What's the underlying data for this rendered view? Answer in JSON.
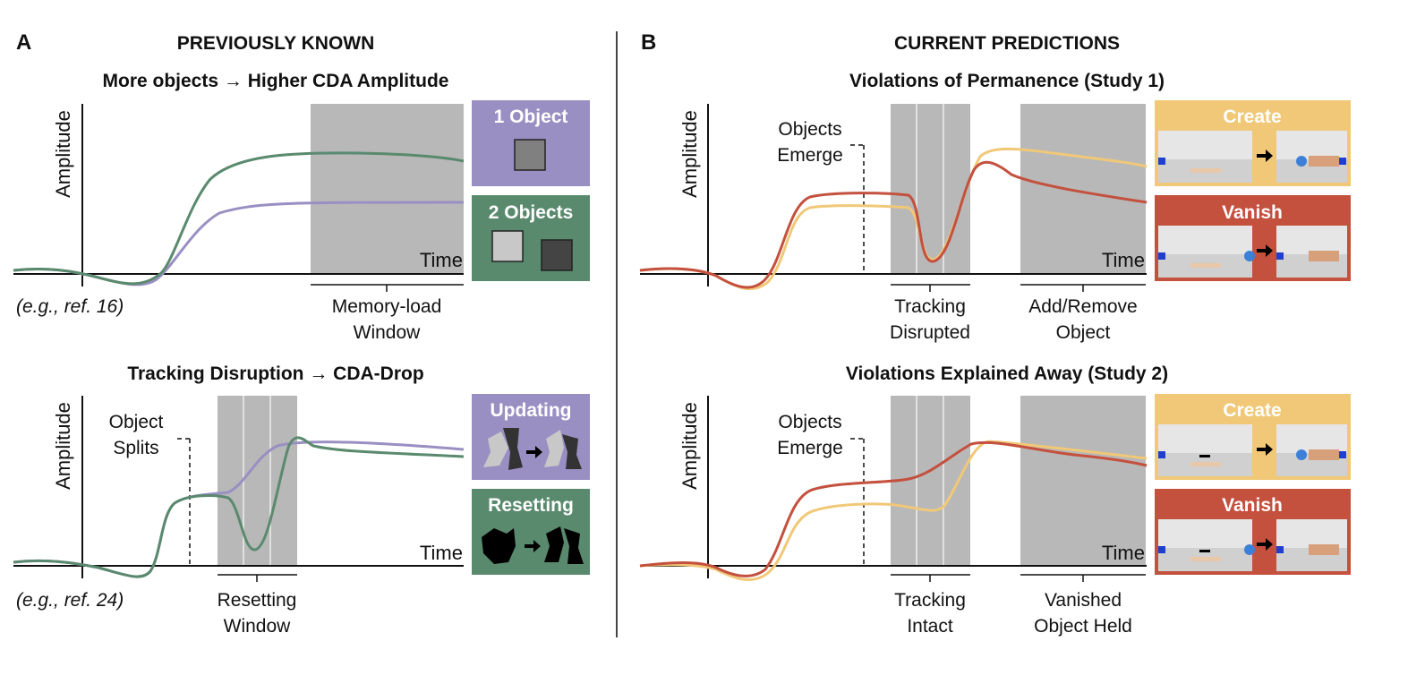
{
  "panel_a": {
    "letter": "A",
    "heading": "PREVIOUSLY KNOWN",
    "top": {
      "title": "More objects → Higher CDA Amplitude",
      "ylabel": "Amplitude",
      "xlabel": "Time",
      "citation": "(e.g., ref. 16)",
      "window_line1": "Memory-load",
      "window_line2": "Window",
      "legend": [
        {
          "label": "1 Object",
          "color": "#9a8fc2"
        },
        {
          "label": "2 Objects",
          "color": "#5a8a6e"
        }
      ]
    },
    "bottom": {
      "title": "Tracking Disruption → CDA-Drop",
      "ylabel": "Amplitude",
      "xlabel": "Time",
      "citation": "(e.g., ref. 24)",
      "event_line1": "Object",
      "event_line2": "Splits",
      "window_line1": "Resetting",
      "window_line2": "Window",
      "legend": [
        {
          "label": "Updating",
          "color": "#9a8fc2"
        },
        {
          "label": "Resetting",
          "color": "#5a8a6e"
        }
      ]
    }
  },
  "panel_b": {
    "letter": "B",
    "heading": "CURRENT PREDICTIONS",
    "top": {
      "title": "Violations of Permanence (Study 1)",
      "ylabel": "Amplitude",
      "xlabel": "Time",
      "event_line1": "Objects",
      "event_line2": "Emerge",
      "window1_line1": "Tracking",
      "window1_line2": "Disrupted",
      "window2_line1": "Add/Remove",
      "window2_line2": "Object",
      "legend": [
        {
          "label": "Create",
          "color": "#f0c878"
        },
        {
          "label": "Vanish",
          "color": "#c4503e"
        }
      ]
    },
    "bottom": {
      "title": "Violations Explained Away (Study 2)",
      "ylabel": "Amplitude",
      "xlabel": "Time",
      "event_line1": "Objects",
      "event_line2": "Emerge",
      "window1_line1": "Tracking",
      "window1_line2": "Intact",
      "window2_line1": "Vanished",
      "window2_line2": "Object Held",
      "legend": [
        {
          "label": "Create",
          "color": "#f0c878"
        },
        {
          "label": "Vanish",
          "color": "#c4503e"
        }
      ]
    }
  },
  "colors": {
    "purple": "#9a8fc2",
    "green": "#5a8a6e",
    "yellow": "#f0c878",
    "red": "#c4503e",
    "window_gray": "#b8b8b8"
  }
}
